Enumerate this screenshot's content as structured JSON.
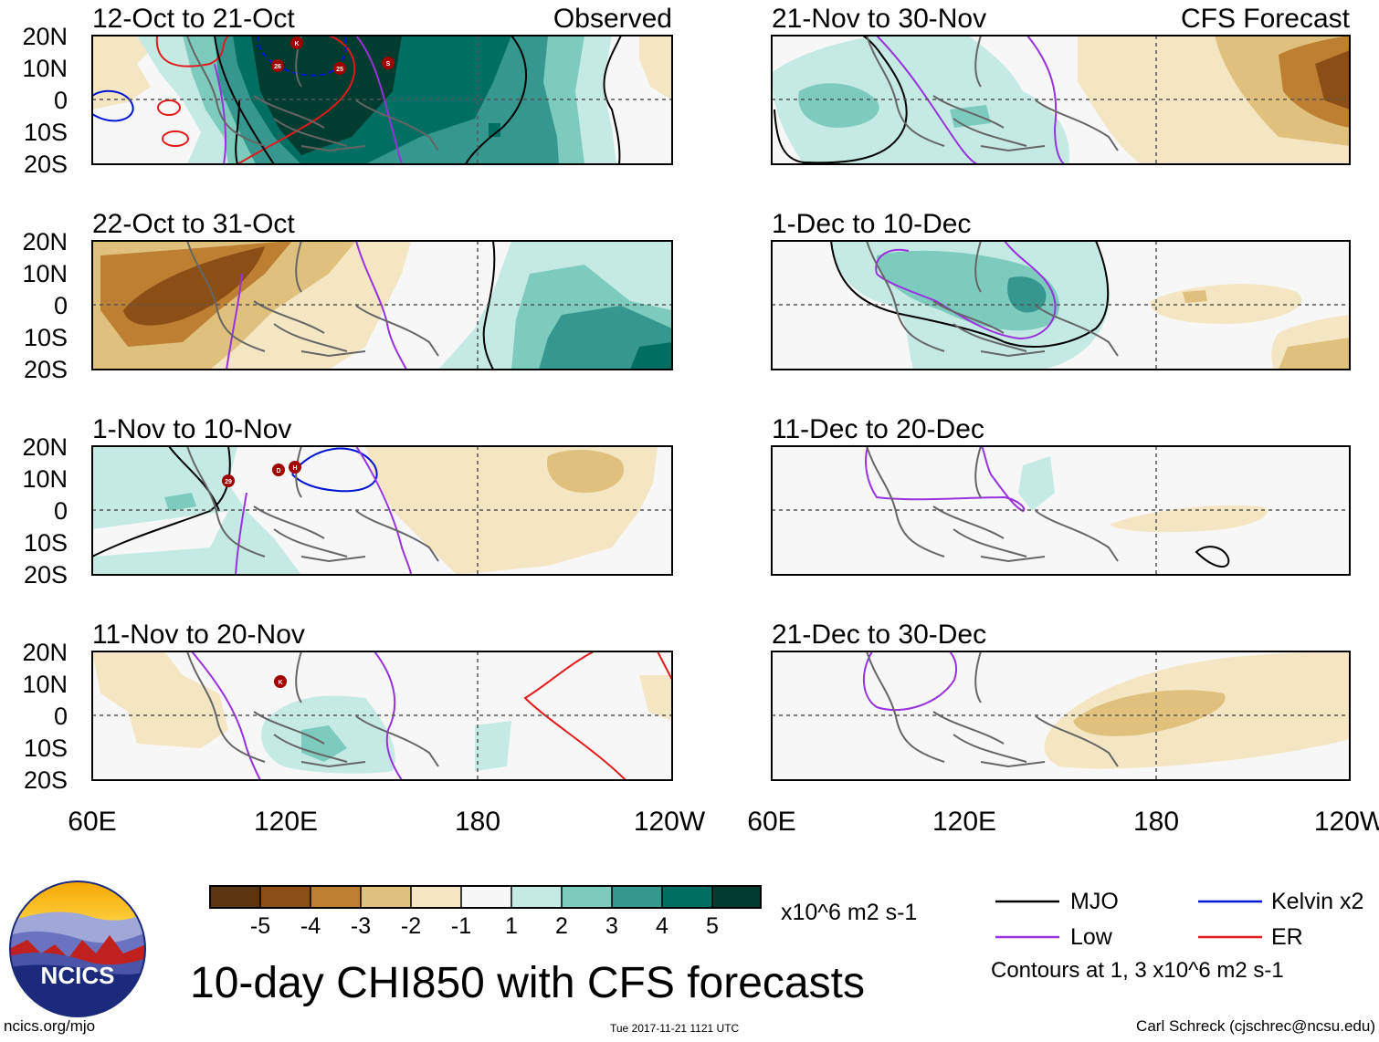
{
  "title": "10-day CHI850 with CFS forecasts",
  "units": "x10^6 m2 s-1",
  "contour_note": "Contours at 1, 3 x10^6 m2 s-1",
  "footer": {
    "site": "ncics.org/mjo",
    "timestamp": "Tue 2017-11-21 1121 UTC",
    "author": "Carl Schreck (cjschrec@ncsu.edu)"
  },
  "logo_text": "NCICS",
  "section_labels": {
    "observed": "Observed",
    "forecast": "CFS Forecast"
  },
  "axes": {
    "lat_labels": [
      "20N",
      "10N",
      "0",
      "10S",
      "20S"
    ],
    "lon_labels": [
      "60E",
      "120E",
      "180",
      "120W"
    ]
  },
  "panels_left": [
    {
      "period": "12-Oct to 21-Oct"
    },
    {
      "period": "22-Oct to 31-Oct"
    },
    {
      "period": "1-Nov to 10-Nov"
    },
    {
      "period": "11-Nov to 20-Nov"
    }
  ],
  "panels_right": [
    {
      "period": "21-Nov to 30-Nov"
    },
    {
      "period": "1-Dec to 10-Dec"
    },
    {
      "period": "11-Dec to 20-Dec"
    },
    {
      "period": "21-Dec to 30-Dec"
    }
  ],
  "colorbar": {
    "ticks": [
      "-5",
      "-4",
      "-3",
      "-2",
      "-1",
      "1",
      "2",
      "3",
      "4",
      "5"
    ],
    "colors": [
      "#5a3510",
      "#8b4f16",
      "#bd8033",
      "#dfc07d",
      "#f4e6c2",
      "#f7f7f7",
      "#c4eae3",
      "#7ccbbd",
      "#35978f",
      "#016e63",
      "#003c30"
    ]
  },
  "legend": {
    "mjo": "MJO",
    "low": "Low",
    "kelvin": "Kelvin x2",
    "er": "ER",
    "colors": {
      "mjo": "#000000",
      "low": "#9932dd",
      "kelvin": "#0014d2",
      "er": "#e31a1c"
    }
  },
  "storms": {
    "p1": [
      "K",
      "26",
      "25",
      "S"
    ],
    "p3": [
      "29",
      "D",
      "H"
    ],
    "p4": [
      "K"
    ]
  }
}
